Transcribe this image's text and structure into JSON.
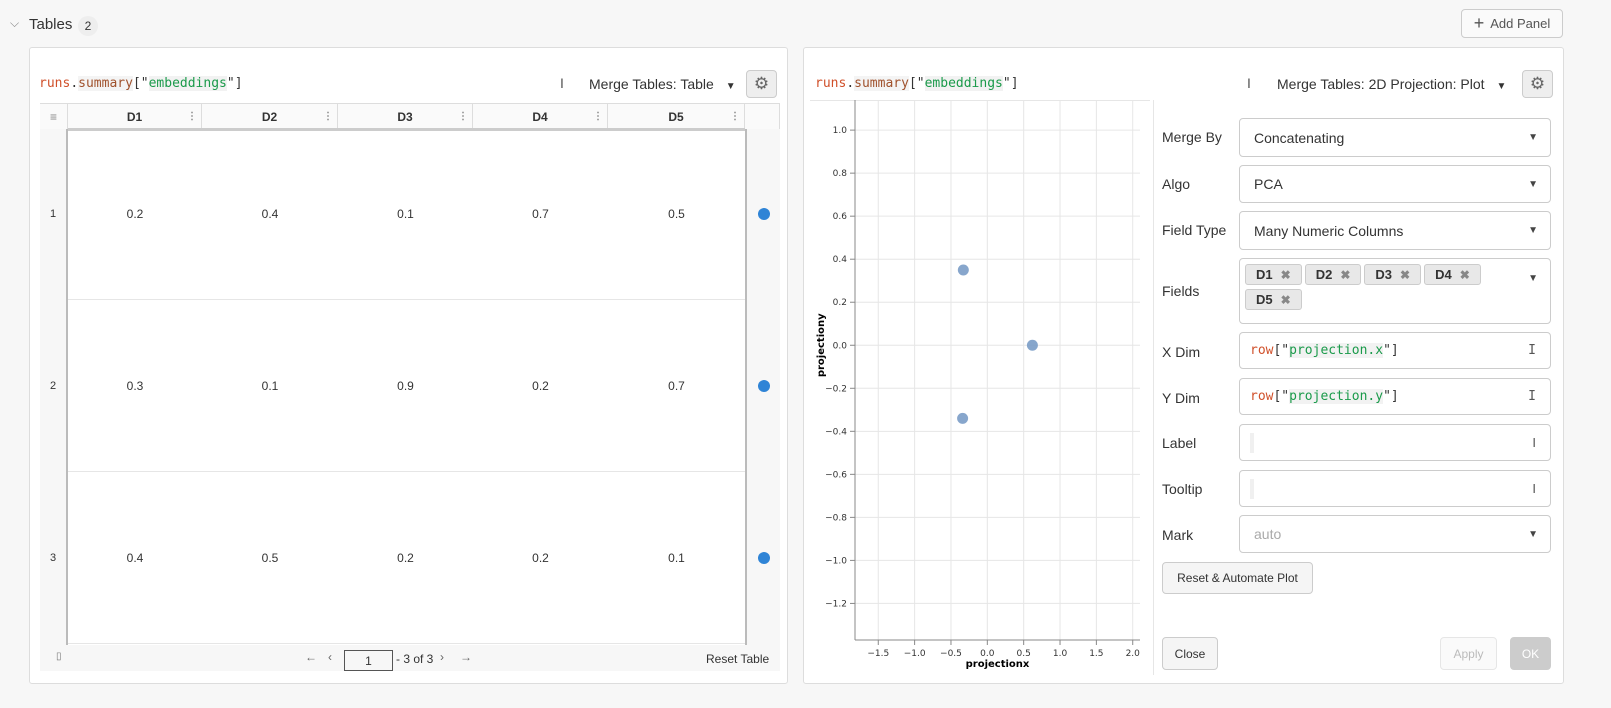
{
  "section": {
    "title": "Tables",
    "count": "2",
    "add_panel": "Add Panel"
  },
  "left": {
    "expr": {
      "runs": "runs",
      "dot": ".",
      "summary": "summary",
      "open": "[\"",
      "key": "embeddings",
      "close": "\"]"
    },
    "dropdown": "Merge Tables: Table",
    "columns": [
      "D1",
      "D2",
      "D3",
      "D4",
      "D5"
    ],
    "rows": [
      {
        "index": "1",
        "values": [
          "0.2",
          "0.4",
          "0.1",
          "0.7",
          "0.5"
        ]
      },
      {
        "index": "2",
        "values": [
          "0.3",
          "0.1",
          "0.9",
          "0.2",
          "0.7"
        ]
      },
      {
        "index": "3",
        "values": [
          "0.4",
          "0.5",
          "0.2",
          "0.2",
          "0.1"
        ]
      }
    ],
    "pagination": {
      "page": "1",
      "range": "- 3 of 3"
    },
    "reset_table": "Reset Table"
  },
  "right": {
    "expr": {
      "runs": "runs",
      "dot": ".",
      "summary": "summary",
      "open": "[\"",
      "key": "embeddings",
      "close": "\"]"
    },
    "dropdown": "Merge Tables: 2D Projection: Plot",
    "config": {
      "merge_by": {
        "label": "Merge By",
        "value": "Concatenating"
      },
      "algo": {
        "label": "Algo",
        "value": "PCA"
      },
      "field_type": {
        "label": "Field Type",
        "value": "Many Numeric Columns"
      },
      "fields": {
        "label": "Fields",
        "tags": [
          "D1",
          "D2",
          "D3",
          "D4",
          "D5"
        ]
      },
      "x_dim": {
        "label": "X Dim",
        "fn": "row",
        "open": "[\"",
        "key": "projection.x",
        "close": "\"]"
      },
      "y_dim": {
        "label": "Y Dim",
        "fn": "row",
        "open": "[\"",
        "key": "projection.y",
        "close": "\"]"
      },
      "label": {
        "label": "Label",
        "value": ""
      },
      "tooltip": {
        "label": "Tooltip",
        "value": ""
      },
      "mark": {
        "label": "Mark",
        "placeholder": "auto"
      },
      "reset": "Reset & Automate Plot",
      "close": "Close",
      "apply": "Apply",
      "ok": "OK"
    }
  },
  "chart_data": {
    "type": "scatter",
    "xlabel": "projectionx",
    "ylabel": "projectiony",
    "xlim": [
      -1.82,
      2.1
    ],
    "ylim": [
      -1.37,
      1.14
    ],
    "xticks": [
      "−1.5",
      "−1.0",
      "−0.5",
      "0.0",
      "0.5",
      "1.0",
      "1.5",
      "2.0"
    ],
    "xtick_values": [
      -1.5,
      -1.0,
      -0.5,
      0,
      0.5,
      1.0,
      1.5,
      2.0
    ],
    "yticks": [
      "1.0",
      "0.8",
      "0.6",
      "0.4",
      "0.2",
      "0.0",
      "−0.2",
      "−0.4",
      "−0.6",
      "−0.8",
      "−1.0",
      "−1.2"
    ],
    "ytick_values": [
      1.0,
      0.8,
      0.6,
      0.4,
      0.2,
      0,
      -0.2,
      -0.4,
      -0.6,
      -0.8,
      -1.0,
      -1.2
    ],
    "grid": true,
    "points": [
      {
        "x": -0.33,
        "y": 0.35
      },
      {
        "x": 0.62,
        "y": 0.0
      },
      {
        "x": -0.34,
        "y": -0.34
      }
    ],
    "color": "#7a9cc6"
  }
}
